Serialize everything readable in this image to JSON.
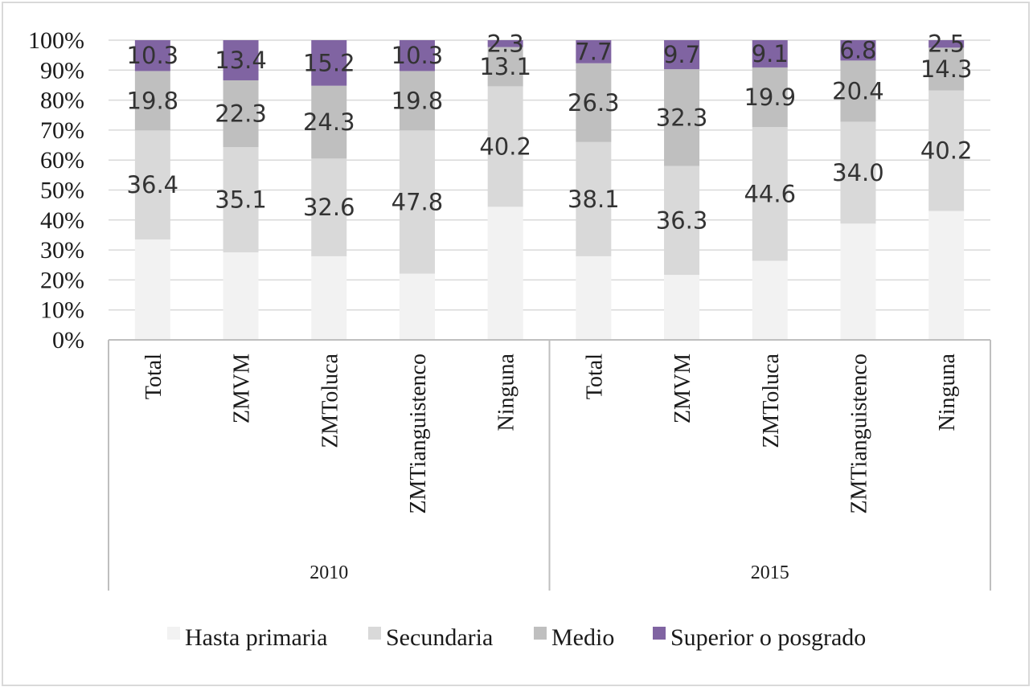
{
  "chart_data": {
    "type": "bar",
    "stacked": true,
    "percent": true,
    "title": "",
    "xlabel": "",
    "ylabel": "",
    "ylim": [
      0,
      100
    ],
    "yticks": [
      "0%",
      "10%",
      "20%",
      "30%",
      "40%",
      "50%",
      "60%",
      "70%",
      "80%",
      "90%",
      "100%"
    ],
    "groups": [
      {
        "label": "2010",
        "categories": [
          "Total",
          "ZMVM",
          "ZMToluca",
          "ZMTianguistenco",
          "Ninguna"
        ]
      },
      {
        "label": "2015",
        "categories": [
          "Total",
          "ZMVM",
          "ZMToluca",
          "ZMTianguistenco",
          "Ninguna"
        ]
      }
    ],
    "categories": [
      "Total",
      "ZMVM",
      "ZMToluca",
      "ZMTianguistenco",
      "Ninguna",
      "Total",
      "ZMVM",
      "ZMToluca",
      "ZMTianguistenco",
      "Ninguna"
    ],
    "series": [
      {
        "name": "Hasta primaria",
        "color": "#f2f2f2",
        "values": [
          33.5,
          29.2,
          27.9,
          22.1,
          44.4,
          27.9,
          21.7,
          26.4,
          38.8,
          43.0
        ],
        "labels": [
          "",
          "",
          "",
          "",
          "",
          "",
          "",
          "",
          "",
          ""
        ]
      },
      {
        "name": "Secundaria",
        "color": "#d9d9d9",
        "values": [
          36.4,
          35.1,
          32.6,
          47.8,
          40.2,
          38.1,
          36.3,
          44.6,
          34.0,
          40.2
        ],
        "labels": [
          "36.4",
          "35.1",
          "32.6",
          "47.8",
          "40.2",
          "38.1",
          "36.3",
          "44.6",
          "34.0",
          "40.2"
        ]
      },
      {
        "name": "Medio",
        "color": "#bfbfbf",
        "values": [
          19.8,
          22.3,
          24.3,
          19.8,
          13.1,
          26.3,
          32.3,
          19.9,
          20.4,
          14.3
        ],
        "labels": [
          "19.8",
          "22.3",
          "24.3",
          "19.8",
          "13.1",
          "26.3",
          "32.3",
          "19.9",
          "20.4",
          "14.3"
        ]
      },
      {
        "name": "Superior o posgrado",
        "color": "#8064a2",
        "values": [
          10.3,
          13.4,
          15.2,
          10.3,
          2.3,
          7.7,
          9.7,
          9.1,
          6.8,
          2.5
        ],
        "labels": [
          "10.3",
          "13.4",
          "15.2",
          "10.3",
          "2.3",
          "7.7",
          "9.7",
          "9.1",
          "6.8",
          "2.5"
        ]
      }
    ],
    "legend": {
      "position": "bottom",
      "entries": [
        "Hasta primaria",
        "Secundaria",
        "Medio",
        "Superior o posgrado"
      ]
    }
  }
}
